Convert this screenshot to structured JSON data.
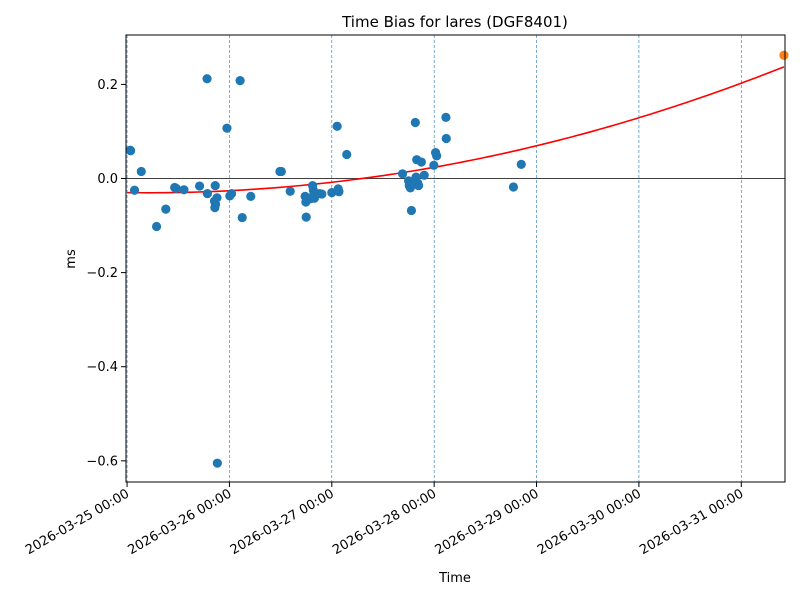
{
  "chart_data": {
    "type": "scatter",
    "title": "Time Bias for lares (DGF8401)",
    "xlabel": "Time",
    "ylabel": "ms",
    "x_axis_type": "date",
    "xlim": [
      "2026-03-24 23:45",
      "2026-03-31 10:15"
    ],
    "ylim": [
      -0.645,
      0.305
    ],
    "x_ticks": [
      "2026-03-25 00:00",
      "2026-03-26 00:00",
      "2026-03-27 00:00",
      "2026-03-28 00:00",
      "2026-03-29 00:00",
      "2026-03-30 00:00",
      "2026-03-31 00:00"
    ],
    "y_ticks": [
      0.2,
      0.0,
      -0.2,
      -0.4,
      -0.6
    ],
    "y_tick_labels": [
      "0.2",
      "0.0",
      "−0.2",
      "−0.4",
      "−0.6"
    ],
    "grid": "vertical dashed lines at x ticks",
    "zero_line": 0,
    "series": [
      {
        "kind": "scatter",
        "color": "#1f77b4",
        "points": [
          [
            "2026-03-25 00:45",
            0.06
          ],
          [
            "2026-03-25 00:50",
            0.059
          ],
          [
            "2026-03-25 01:45",
            -0.025
          ],
          [
            "2026-03-25 03:20",
            0.015
          ],
          [
            "2026-03-25 06:55",
            -0.102
          ],
          [
            "2026-03-25 09:05",
            -0.065
          ],
          [
            "2026-03-25 11:10",
            -0.019
          ],
          [
            "2026-03-25 11:30",
            -0.021
          ],
          [
            "2026-03-25 13:20",
            -0.024
          ],
          [
            "2026-03-25 17:00",
            -0.016
          ],
          [
            "2026-03-25 18:45",
            0.212
          ],
          [
            "2026-03-25 18:50",
            -0.032
          ],
          [
            "2026-03-25 20:40",
            -0.015
          ],
          [
            "2026-03-25 20:30",
            -0.048
          ],
          [
            "2026-03-25 20:45",
            -0.055
          ],
          [
            "2026-03-25 20:35",
            -0.062
          ],
          [
            "2026-03-25 21:05",
            -0.041
          ],
          [
            "2026-03-25 21:10",
            -0.605
          ],
          [
            "2026-03-25 23:25",
            0.107
          ],
          [
            "2026-03-26 00:05",
            -0.037
          ],
          [
            "2026-03-26 00:30",
            -0.032
          ],
          [
            "2026-03-26 02:30",
            0.208
          ],
          [
            "2026-03-26 03:00",
            -0.083
          ],
          [
            "2026-03-26 05:00",
            -0.038
          ],
          [
            "2026-03-26 11:50",
            0.015
          ],
          [
            "2026-03-26 12:10",
            0.015
          ],
          [
            "2026-03-26 14:15",
            -0.027
          ],
          [
            "2026-03-26 17:45",
            -0.038
          ],
          [
            "2026-03-26 17:55",
            -0.05
          ],
          [
            "2026-03-26 18:00",
            -0.082
          ],
          [
            "2026-03-26 19:00",
            -0.043
          ],
          [
            "2026-03-26 19:30",
            -0.015
          ],
          [
            "2026-03-26 19:40",
            -0.025
          ],
          [
            "2026-03-26 19:45",
            -0.035
          ],
          [
            "2026-03-26 19:55",
            -0.042
          ],
          [
            "2026-03-26 21:10",
            -0.032
          ],
          [
            "2026-03-26 21:40",
            -0.033
          ],
          [
            "2026-03-27 00:00",
            -0.03
          ],
          [
            "2026-03-27 01:15",
            0.111
          ],
          [
            "2026-03-27 01:30",
            -0.022
          ],
          [
            "2026-03-27 01:40",
            -0.028
          ],
          [
            "2026-03-27 03:30",
            0.051
          ],
          [
            "2026-03-27 16:35",
            0.01
          ],
          [
            "2026-03-27 18:00",
            -0.005
          ],
          [
            "2026-03-27 18:10",
            -0.015
          ],
          [
            "2026-03-27 18:25",
            -0.02
          ],
          [
            "2026-03-27 18:40",
            -0.068
          ],
          [
            "2026-03-27 19:05",
            -0.012
          ],
          [
            "2026-03-27 19:35",
            0.119
          ],
          [
            "2026-03-27 19:45",
            0.003
          ],
          [
            "2026-03-27 19:55",
            0.04
          ],
          [
            "2026-03-27 20:10",
            -0.01
          ],
          [
            "2026-03-27 20:20",
            -0.015
          ],
          [
            "2026-03-27 21:00",
            0.035
          ],
          [
            "2026-03-27 21:40",
            0.007
          ],
          [
            "2026-03-27 23:55",
            0.028
          ],
          [
            "2026-03-28 00:20",
            0.055
          ],
          [
            "2026-03-28 00:35",
            0.048
          ],
          [
            "2026-03-28 02:45",
            0.13
          ],
          [
            "2026-03-28 02:50",
            0.085
          ],
          [
            "2026-03-28 18:35",
            -0.018
          ],
          [
            "2026-03-28 20:25",
            0.03
          ]
        ]
      },
      {
        "kind": "line",
        "color": "#ff0000",
        "fit": "quadratic",
        "coefficients_days_from_2026-03-25_00:00": [
          -0.03,
          -0.00287,
          0.00694
        ],
        "x_range": [
          "2026-03-25 00:00",
          "2026-03-31 10:00"
        ]
      },
      {
        "kind": "scatter",
        "color": "#ff7f0e",
        "points": [
          [
            "2026-03-31 10:00",
            0.262
          ]
        ]
      }
    ]
  }
}
